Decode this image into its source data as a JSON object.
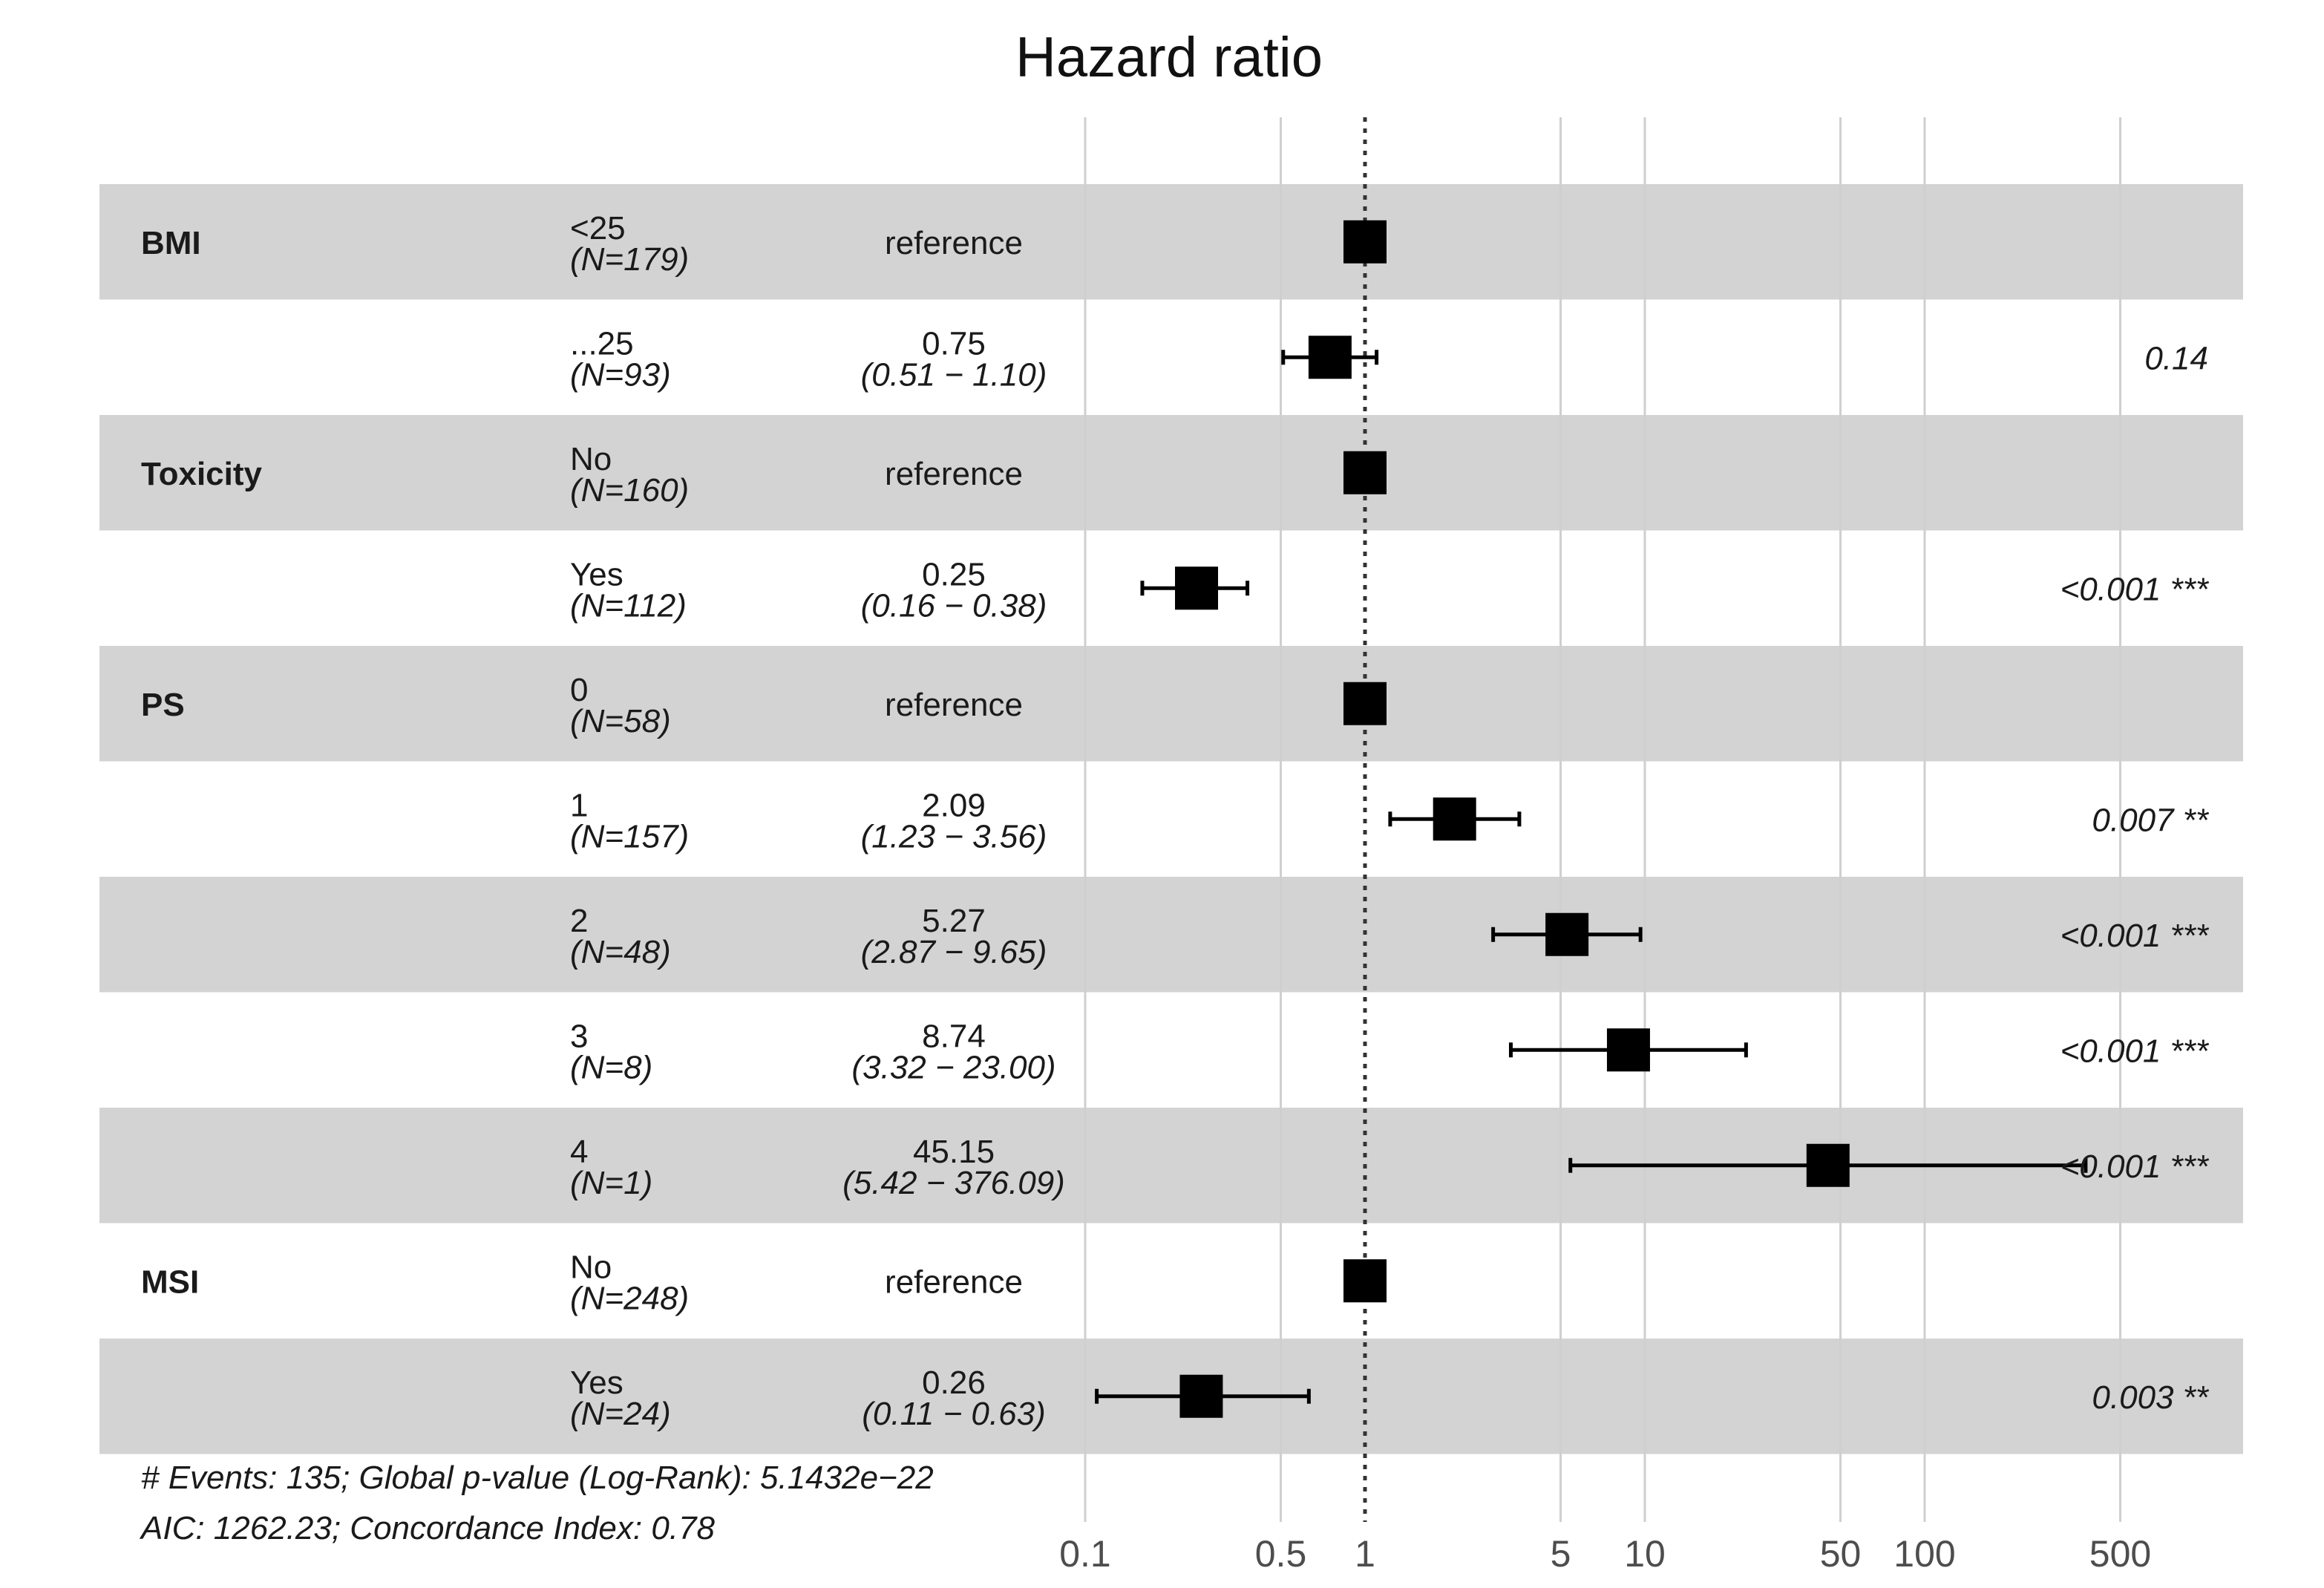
{
  "chart_data": {
    "type": "forest",
    "title": "Hazard ratio",
    "x_scale": "log",
    "xlim": [
      0.1,
      1000
    ],
    "x_ticks": [
      0.1,
      0.5,
      1,
      5,
      10,
      50,
      100,
      500
    ],
    "x_tick_labels": [
      "0.1",
      "0.5",
      "1",
      "5",
      "10",
      "50",
      "100",
      "500"
    ],
    "reference_line": 1,
    "rows": [
      {
        "variable": "BMI",
        "level": "<25",
        "n": "(N=179)",
        "hr": 1,
        "hr_text": "reference",
        "ci_text": "",
        "ci": null,
        "p": "",
        "stars": "",
        "shaded": true
      },
      {
        "variable": "",
        "level": "...25",
        "n": "(N=93)",
        "hr": 0.75,
        "hr_text": "0.75",
        "ci_text": "(0.51 −   1.10)",
        "ci": [
          0.51,
          1.1
        ],
        "p": "0.14",
        "stars": "",
        "shaded": false
      },
      {
        "variable": "Toxicity",
        "level": "No",
        "n": "(N=160)",
        "hr": 1,
        "hr_text": "reference",
        "ci_text": "",
        "ci": null,
        "p": "",
        "stars": "",
        "shaded": true
      },
      {
        "variable": "",
        "level": "Yes",
        "n": "(N=112)",
        "hr": 0.25,
        "hr_text": "0.25",
        "ci_text": "(0.16 −   0.38)",
        "ci": [
          0.16,
          0.38
        ],
        "p": "<0.001",
        "stars": "***",
        "shaded": false
      },
      {
        "variable": "PS",
        "level": "0",
        "n": "(N=58)",
        "hr": 1,
        "hr_text": "reference",
        "ci_text": "",
        "ci": null,
        "p": "",
        "stars": "",
        "shaded": true
      },
      {
        "variable": "",
        "level": "1",
        "n": "(N=157)",
        "hr": 2.09,
        "hr_text": "2.09",
        "ci_text": "(1.23 −   3.56)",
        "ci": [
          1.23,
          3.56
        ],
        "p": "0.007",
        "stars": "**",
        "shaded": false
      },
      {
        "variable": "",
        "level": "2",
        "n": "(N=48)",
        "hr": 5.27,
        "hr_text": "5.27",
        "ci_text": "(2.87 −   9.65)",
        "ci": [
          2.87,
          9.65
        ],
        "p": "<0.001",
        "stars": "***",
        "shaded": true
      },
      {
        "variable": "",
        "level": "3",
        "n": "(N=8)",
        "hr": 8.74,
        "hr_text": "8.74",
        "ci_text": "(3.32 −  23.00)",
        "ci": [
          3.32,
          23.0
        ],
        "p": "<0.001",
        "stars": "***",
        "shaded": false
      },
      {
        "variable": "",
        "level": "4",
        "n": "(N=1)",
        "hr": 45.15,
        "hr_text": "45.15",
        "ci_text": "(5.42 − 376.09)",
        "ci": [
          5.42,
          376.09
        ],
        "p": "<0.001",
        "stars": "***",
        "shaded": true
      },
      {
        "variable": "MSI",
        "level": "No",
        "n": "(N=248)",
        "hr": 1,
        "hr_text": "reference",
        "ci_text": "",
        "ci": null,
        "p": "",
        "stars": "",
        "shaded": false
      },
      {
        "variable": "",
        "level": "Yes",
        "n": "(N=24)",
        "hr": 0.26,
        "hr_text": "0.26",
        "ci_text": "(0.11 −   0.63)",
        "ci": [
          0.11,
          0.63
        ],
        "p": "0.003",
        "stars": "**",
        "shaded": true
      }
    ],
    "footnote_lines": [
      "# Events: 135; Global p-value (Log-Rank): 5.1432e−22",
      "AIC: 1262.23; Concordance Index: 0.78"
    ]
  },
  "colors": {
    "row_shade": "#d3d3d3",
    "marker": "#000000",
    "gridline": "#cfcfcf",
    "reference_line": "#333333"
  }
}
